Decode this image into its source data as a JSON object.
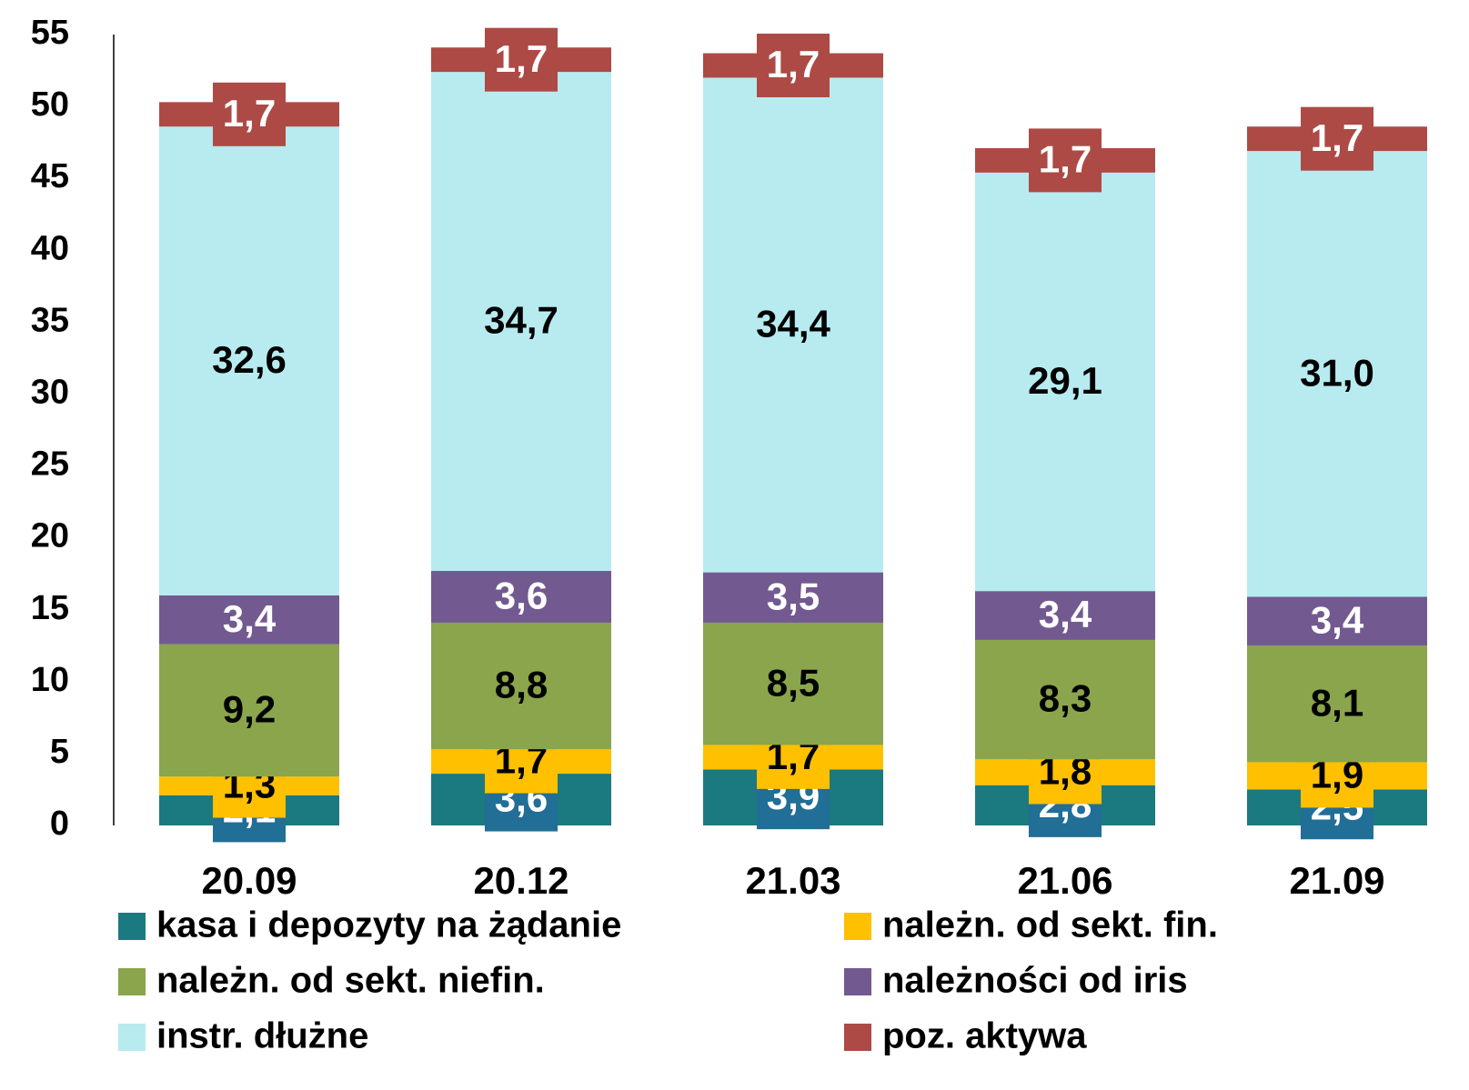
{
  "chart_data": {
    "type": "stacked_bar",
    "categories": [
      "20.09",
      "20.12",
      "21.03",
      "21.06",
      "21.09"
    ],
    "ylim": [
      0,
      55
    ],
    "yticks": [
      0,
      5,
      10,
      15,
      20,
      25,
      30,
      35,
      40,
      45,
      50,
      55
    ],
    "legend": "bottom",
    "series": [
      {
        "name": "kasa i depozyty na żądanie",
        "color": "#1a7a80",
        "label_color": "#ffffff",
        "label_box": "#216e96",
        "values": [
          2.1,
          3.6,
          3.9,
          2.8,
          2.5
        ],
        "value_labels": [
          "2,1",
          "3,6",
          "3,9",
          "2,8",
          "2,5"
        ]
      },
      {
        "name": "należn. od sekt. fin.",
        "color": "#ffc000",
        "label_color": "#000000",
        "label_box": "#ffc000",
        "values": [
          1.3,
          1.7,
          1.7,
          1.8,
          1.9
        ],
        "value_labels": [
          "1,3",
          "1,7",
          "1,7",
          "1,8",
          "1,9"
        ]
      },
      {
        "name": "należn. od sekt. niefin.",
        "color": "#8aa54b",
        "label_color": "#000000",
        "values": [
          9.2,
          8.8,
          8.5,
          8.3,
          8.1
        ],
        "value_labels": [
          "9,2",
          "8,8",
          "8,5",
          "8,3",
          "8,1"
        ]
      },
      {
        "name": "należności od iris",
        "color": "#725a90",
        "label_color": "#ffffff",
        "values": [
          3.4,
          3.6,
          3.5,
          3.4,
          3.4
        ],
        "value_labels": [
          "3,4",
          "3,6",
          "3,5",
          "3,4",
          "3,4"
        ]
      },
      {
        "name": "instr. dłużne",
        "color": "#b7ebf0",
        "label_color": "#000000",
        "values": [
          32.6,
          34.7,
          34.4,
          29.1,
          31.0
        ],
        "value_labels": [
          "32,6",
          "34,7",
          "34,4",
          "29,1",
          "31,0"
        ]
      },
      {
        "name": "poz. aktywa",
        "color": "#ad4a45",
        "label_color": "#ffffff",
        "label_box": "#ad4a45",
        "values": [
          1.7,
          1.7,
          1.7,
          1.7,
          1.7
        ],
        "value_labels": [
          "1,7",
          "1,7",
          "1,7",
          "1,7",
          "1,7"
        ]
      }
    ]
  }
}
